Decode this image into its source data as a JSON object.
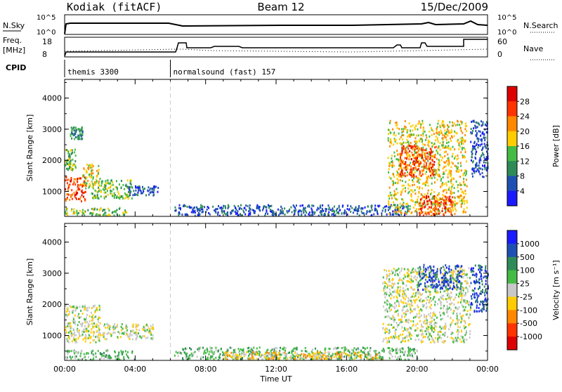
{
  "header": {
    "station": "Kodiak (fitACF)",
    "beam": "Beam 12",
    "date": "15/Dec/2009"
  },
  "side_labels": {
    "nsky": "N.Sky",
    "nsearch": "N.Search",
    "freq_line1": "Freq.",
    "freq_line2": "[MHz]",
    "nave": "Nave",
    "cpid": "CPID"
  },
  "ticks_top": {
    "nsky_hi": "10^5",
    "nsky_lo": "10^0",
    "nsearch_hi": "10^5",
    "nsearch_lo": "10^0",
    "freq_hi": "18",
    "freq_lo": "8",
    "nave_hi": "60",
    "nave_lo": "0"
  },
  "cpid_segments": [
    {
      "label": "themis 3300",
      "start": 0.0,
      "end": 6.0
    },
    {
      "label": "normalsound (fast) 157",
      "start": 6.0,
      "end": 24.0
    }
  ],
  "chart_data": [
    {
      "type": "heatmap",
      "name": "power",
      "xlabel": "",
      "ylabel": "Slant Range [km]",
      "xlim": [
        0,
        24
      ],
      "ylim": [
        200,
        4600
      ],
      "yticks": [
        "1000",
        "2000",
        "3000",
        "4000"
      ],
      "colorbar_label": "Power [dB]",
      "colorbar_ticks": [
        "4",
        "8",
        "12",
        "16",
        "20",
        "24",
        "28"
      ],
      "colors": [
        "#1a1aff",
        "#1e50b4",
        "#2e8b57",
        "#44bb44",
        "#ffcc00",
        "#ff8800",
        "#ff3300",
        "#dd0000"
      ],
      "blobs": [
        {
          "t0": 0.0,
          "t1": 1.2,
          "r0": 700,
          "r1": 1500,
          "c": 6
        },
        {
          "t0": 0.0,
          "t1": 0.6,
          "r0": 1700,
          "r1": 2400,
          "c": 3
        },
        {
          "t0": 0.3,
          "t1": 1.0,
          "r0": 2700,
          "r1": 3100,
          "c": 2
        },
        {
          "t0": 1.0,
          "t1": 2.0,
          "r0": 1100,
          "r1": 1900,
          "c": 4
        },
        {
          "t0": 1.5,
          "t1": 3.8,
          "r0": 800,
          "r1": 1400,
          "c": 3
        },
        {
          "t0": 3.5,
          "t1": 5.3,
          "r0": 900,
          "r1": 1200,
          "c": 1
        },
        {
          "t0": 0.0,
          "t1": 3.5,
          "r0": 250,
          "r1": 500,
          "c": 3
        },
        {
          "t0": 6.2,
          "t1": 19.5,
          "r0": 250,
          "r1": 600,
          "c": 1
        },
        {
          "t0": 18.3,
          "t1": 22.8,
          "r0": 300,
          "r1": 3300,
          "c": 4
        },
        {
          "t0": 19.0,
          "t1": 21.0,
          "r0": 1500,
          "r1": 2500,
          "c": 6
        },
        {
          "t0": 20.0,
          "t1": 22.0,
          "r0": 250,
          "r1": 900,
          "c": 6
        },
        {
          "t0": 23.0,
          "t1": 24.0,
          "r0": 1500,
          "r1": 3300,
          "c": 1
        }
      ]
    },
    {
      "type": "heatmap",
      "name": "velocity",
      "xlabel": "Time UT",
      "ylabel": "Slant Range [km]",
      "xlim": [
        0,
        24
      ],
      "ylim": [
        200,
        4600
      ],
      "xticks": [
        "00:00",
        "04:00",
        "08:00",
        "12:00",
        "16:00",
        "20:00",
        "00:00"
      ],
      "yticks": [
        "1000",
        "2000",
        "3000",
        "4000"
      ],
      "colorbar_label": "Velocity [m s⁻¹]",
      "colorbar_ticks": [
        "1000",
        "500",
        "100",
        "25",
        "-25",
        "-100",
        "-500",
        "-1000"
      ],
      "colors": [
        "#1a1aff",
        "#1e50b4",
        "#2e8b57",
        "#44bb44",
        "#c8c8c8",
        "#ffcc00",
        "#ff8800",
        "#ff3300",
        "#dd0000"
      ],
      "blobs": [
        {
          "t0": 0.0,
          "t1": 2.0,
          "r0": 800,
          "r1": 2000,
          "c": 4
        },
        {
          "t0": 2.0,
          "t1": 5.0,
          "r0": 900,
          "r1": 1400,
          "c": 4
        },
        {
          "t0": 0.0,
          "t1": 4.0,
          "r0": 250,
          "r1": 550,
          "c": 3
        },
        {
          "t0": 6.2,
          "t1": 20.0,
          "r0": 250,
          "r1": 650,
          "c": 3
        },
        {
          "t0": 9.0,
          "t1": 18.0,
          "r0": 250,
          "r1": 500,
          "c": 5
        },
        {
          "t0": 18.0,
          "t1": 23.0,
          "r0": 800,
          "r1": 3200,
          "c": 4
        },
        {
          "t0": 20.0,
          "t1": 22.5,
          "r0": 2500,
          "r1": 3300,
          "c": 1
        },
        {
          "t0": 23.0,
          "t1": 24.0,
          "r0": 1800,
          "r1": 3300,
          "c": 1
        }
      ]
    }
  ]
}
